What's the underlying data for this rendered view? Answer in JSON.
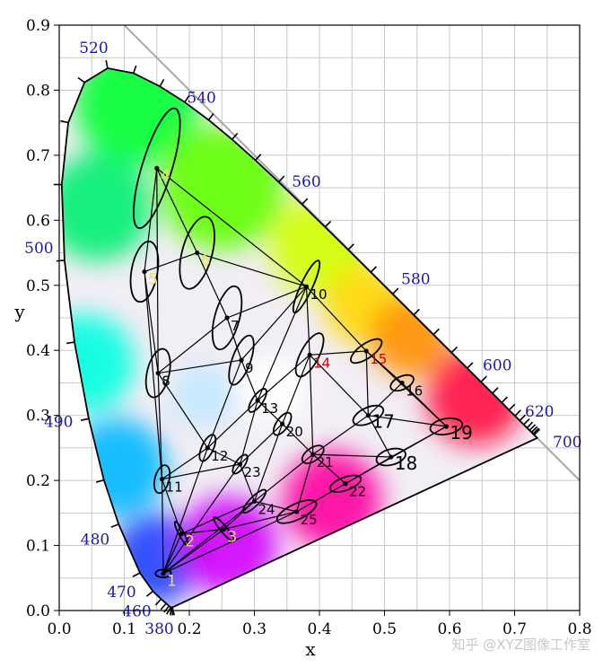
{
  "chart_data": {
    "type": "scatter",
    "title": "",
    "xlabel": "x",
    "ylabel": "y",
    "xlim": [
      0,
      0.8
    ],
    "ylim": [
      0,
      0.9
    ],
    "x_ticks": [
      "0.0",
      "0.1",
      "0.2",
      "0.3",
      "0.4",
      "0.5",
      "0.6",
      "0.7",
      "0.8"
    ],
    "y_ticks": [
      "0.0",
      "0.1",
      "0.2",
      "0.3",
      "0.4",
      "0.5",
      "0.6",
      "0.7",
      "0.8",
      "0.9"
    ],
    "grid": true,
    "locus": [
      [
        0.1741,
        0.005
      ],
      [
        0.1738,
        0.0049
      ],
      [
        0.1733,
        0.0048
      ],
      [
        0.1726,
        0.0048
      ],
      [
        0.1714,
        0.0051
      ],
      [
        0.1689,
        0.0069
      ],
      [
        0.1644,
        0.0109
      ],
      [
        0.1566,
        0.0177
      ],
      [
        0.144,
        0.0297
      ],
      [
        0.1241,
        0.0578
      ],
      [
        0.0913,
        0.1327
      ],
      [
        0.0687,
        0.2007
      ],
      [
        0.0454,
        0.295
      ],
      [
        0.0235,
        0.4127
      ],
      [
        0.0082,
        0.5384
      ],
      [
        0.0039,
        0.6548
      ],
      [
        0.0139,
        0.7502
      ],
      [
        0.0389,
        0.812
      ],
      [
        0.0743,
        0.8338
      ],
      [
        0.1142,
        0.8262
      ],
      [
        0.1547,
        0.8059
      ],
      [
        0.1929,
        0.7816
      ],
      [
        0.2296,
        0.7543
      ],
      [
        0.2658,
        0.7243
      ],
      [
        0.3016,
        0.6923
      ],
      [
        0.3373,
        0.6589
      ],
      [
        0.3731,
        0.6245
      ],
      [
        0.4087,
        0.5896
      ],
      [
        0.4441,
        0.5547
      ],
      [
        0.4788,
        0.5202
      ],
      [
        0.5125,
        0.4866
      ],
      [
        0.5448,
        0.4544
      ],
      [
        0.5752,
        0.4242
      ],
      [
        0.6029,
        0.3965
      ],
      [
        0.627,
        0.3725
      ],
      [
        0.6482,
        0.3514
      ],
      [
        0.6658,
        0.334
      ],
      [
        0.6801,
        0.3197
      ],
      [
        0.6915,
        0.3083
      ],
      [
        0.7006,
        0.2993
      ],
      [
        0.7079,
        0.292
      ],
      [
        0.714,
        0.2859
      ],
      [
        0.719,
        0.2809
      ],
      [
        0.723,
        0.277
      ],
      [
        0.726,
        0.274
      ],
      [
        0.7283,
        0.2717
      ],
      [
        0.73,
        0.27
      ],
      [
        0.7347,
        0.2653
      ]
    ],
    "wavelength_labels": [
      {
        "text": "380",
        "x": 0.1741,
        "y": 0.005
      },
      {
        "text": "460",
        "x": 0.144,
        "y": 0.0297
      },
      {
        "text": "470",
        "x": 0.1241,
        "y": 0.0578
      },
      {
        "text": "480",
        "x": 0.0913,
        "y": 0.1327
      },
      {
        "text": "490",
        "x": 0.0454,
        "y": 0.295
      },
      {
        "text": "500",
        "x": 0.0082,
        "y": 0.5384
      },
      {
        "text": "520",
        "x": 0.0743,
        "y": 0.8338
      },
      {
        "text": "540",
        "x": 0.2296,
        "y": 0.7543
      },
      {
        "text": "560",
        "x": 0.3731,
        "y": 0.6245
      },
      {
        "text": "580",
        "x": 0.5125,
        "y": 0.4866
      },
      {
        "text": "600",
        "x": 0.627,
        "y": 0.3725
      },
      {
        "text": "620",
        "x": 0.6915,
        "y": 0.3083
      },
      {
        "text": "700",
        "x": 0.7347,
        "y": 0.2653
      }
    ],
    "points": [
      {
        "label": "1",
        "x": 0.16,
        "y": 0.057,
        "a": 0.012,
        "b": 0.006,
        "angle": 0,
        "color": "#f0e060",
        "size": 17
      },
      {
        "label": "2",
        "x": 0.188,
        "y": 0.118,
        "a": 0.021,
        "b": 0.004,
        "angle": 62,
        "color": "#f0e060",
        "size": 17
      },
      {
        "label": "3",
        "x": 0.253,
        "y": 0.125,
        "a": 0.024,
        "b": 0.005,
        "angle": 50,
        "color": "#f0e060",
        "size": 17
      },
      {
        "label": "4",
        "x": 0.15,
        "y": 0.68,
        "a": 0.096,
        "b": 0.023,
        "angle": -73,
        "color": "#f0e060",
        "size": 17
      },
      {
        "label": "5",
        "x": 0.131,
        "y": 0.521,
        "a": 0.047,
        "b": 0.02,
        "angle": -80,
        "color": "#f0e060",
        "size": 17
      },
      {
        "label": "6",
        "x": 0.212,
        "y": 0.55,
        "a": 0.057,
        "b": 0.023,
        "angle": -75,
        "color": "#f0e060",
        "size": 17
      },
      {
        "label": "7",
        "x": 0.258,
        "y": 0.45,
        "a": 0.05,
        "b": 0.019,
        "angle": -75,
        "color": "#000000",
        "size": 15
      },
      {
        "label": "8",
        "x": 0.152,
        "y": 0.365,
        "a": 0.038,
        "b": 0.017,
        "angle": -77,
        "color": "#000000",
        "size": 15
      },
      {
        "label": "9",
        "x": 0.28,
        "y": 0.385,
        "a": 0.04,
        "b": 0.014,
        "angle": -70,
        "color": "#000000",
        "size": 15
      },
      {
        "label": "10",
        "x": 0.38,
        "y": 0.498,
        "a": 0.044,
        "b": 0.009,
        "angle": -65,
        "color": "#000000",
        "size": 15
      },
      {
        "label": "11",
        "x": 0.158,
        "y": 0.202,
        "a": 0.022,
        "b": 0.011,
        "angle": -75,
        "color": "#000000",
        "size": 15
      },
      {
        "label": "12",
        "x": 0.228,
        "y": 0.25,
        "a": 0.022,
        "b": 0.009,
        "angle": -65,
        "color": "#000000",
        "size": 15
      },
      {
        "label": "13",
        "x": 0.305,
        "y": 0.323,
        "a": 0.021,
        "b": 0.008,
        "angle": -55,
        "color": "#000000",
        "size": 15
      },
      {
        "label": "14",
        "x": 0.385,
        "y": 0.393,
        "a": 0.037,
        "b": 0.014,
        "angle": -62,
        "color": "#cc0000",
        "size": 15
      },
      {
        "label": "15",
        "x": 0.472,
        "y": 0.399,
        "a": 0.028,
        "b": 0.011,
        "angle": -35,
        "color": "#cc0000",
        "size": 15
      },
      {
        "label": "16",
        "x": 0.527,
        "y": 0.35,
        "a": 0.019,
        "b": 0.01,
        "angle": -25,
        "color": "#000000",
        "size": 15
      },
      {
        "label": "17",
        "x": 0.475,
        "y": 0.3,
        "a": 0.025,
        "b": 0.012,
        "angle": -25,
        "color": "#000000",
        "size": 20
      },
      {
        "label": "18",
        "x": 0.51,
        "y": 0.236,
        "a": 0.023,
        "b": 0.012,
        "angle": -15,
        "color": "#000000",
        "size": 20
      },
      {
        "label": "19",
        "x": 0.595,
        "y": 0.283,
        "a": 0.025,
        "b": 0.012,
        "angle": -10,
        "color": "#000000",
        "size": 20
      },
      {
        "label": "20",
        "x": 0.343,
        "y": 0.287,
        "a": 0.02,
        "b": 0.009,
        "angle": -55,
        "color": "#000000",
        "size": 15
      },
      {
        "label": "21",
        "x": 0.39,
        "y": 0.24,
        "a": 0.019,
        "b": 0.01,
        "angle": -35,
        "color": "#000000",
        "size": 15
      },
      {
        "label": "22",
        "x": 0.44,
        "y": 0.195,
        "a": 0.025,
        "b": 0.01,
        "angle": -20,
        "color": "#000000",
        "size": 15
      },
      {
        "label": "23",
        "x": 0.278,
        "y": 0.225,
        "a": 0.017,
        "b": 0.007,
        "angle": -55,
        "color": "#000000",
        "size": 15
      },
      {
        "label": "24",
        "x": 0.3,
        "y": 0.168,
        "a": 0.024,
        "b": 0.007,
        "angle": -45,
        "color": "#000000",
        "size": 15
      },
      {
        "label": "25",
        "x": 0.365,
        "y": 0.152,
        "a": 0.033,
        "b": 0.012,
        "angle": -25,
        "color": "#000000",
        "size": 15
      }
    ],
    "label_offsets_note": "",
    "connections": [
      [
        1,
        2
      ],
      [
        1,
        3
      ],
      [
        1,
        11
      ],
      [
        1,
        12
      ],
      [
        1,
        23
      ],
      [
        1,
        24
      ],
      [
        1,
        25
      ],
      [
        2,
        3
      ],
      [
        2,
        11
      ],
      [
        2,
        24
      ],
      [
        3,
        24
      ],
      [
        3,
        25
      ],
      [
        4,
        5
      ],
      [
        4,
        6
      ],
      [
        4,
        8
      ],
      [
        4,
        10
      ],
      [
        5,
        6
      ],
      [
        5,
        8
      ],
      [
        5,
        11
      ],
      [
        6,
        7
      ],
      [
        6,
        10
      ],
      [
        7,
        8
      ],
      [
        7,
        9
      ],
      [
        7,
        10
      ],
      [
        8,
        9
      ],
      [
        8,
        11
      ],
      [
        8,
        12
      ],
      [
        9,
        10
      ],
      [
        9,
        12
      ],
      [
        9,
        13
      ],
      [
        10,
        13
      ],
      [
        10,
        14
      ],
      [
        10,
        15
      ],
      [
        11,
        12
      ],
      [
        11,
        23
      ],
      [
        12,
        13
      ],
      [
        12,
        23
      ],
      [
        13,
        14
      ],
      [
        13,
        20
      ],
      [
        13,
        23
      ],
      [
        14,
        15
      ],
      [
        14,
        17
      ],
      [
        14,
        20
      ],
      [
        14,
        21
      ],
      [
        15,
        16
      ],
      [
        15,
        17
      ],
      [
        15,
        19
      ],
      [
        16,
        19
      ],
      [
        17,
        18
      ],
      [
        17,
        19
      ],
      [
        17,
        21
      ],
      [
        17,
        16
      ],
      [
        18,
        19
      ],
      [
        18,
        21
      ],
      [
        18,
        22
      ],
      [
        19,
        22
      ],
      [
        20,
        21
      ],
      [
        20,
        23
      ],
      [
        20,
        24
      ],
      [
        21,
        22
      ],
      [
        21,
        24
      ],
      [
        21,
        25
      ],
      [
        22,
        25
      ],
      [
        23,
        24
      ],
      [
        24,
        25
      ]
    ],
    "white_line": [
      [
        0.1,
        0.9
      ],
      [
        0.8,
        0.2
      ]
    ]
  },
  "watermark": "知乎 @XYZ图像工作室"
}
